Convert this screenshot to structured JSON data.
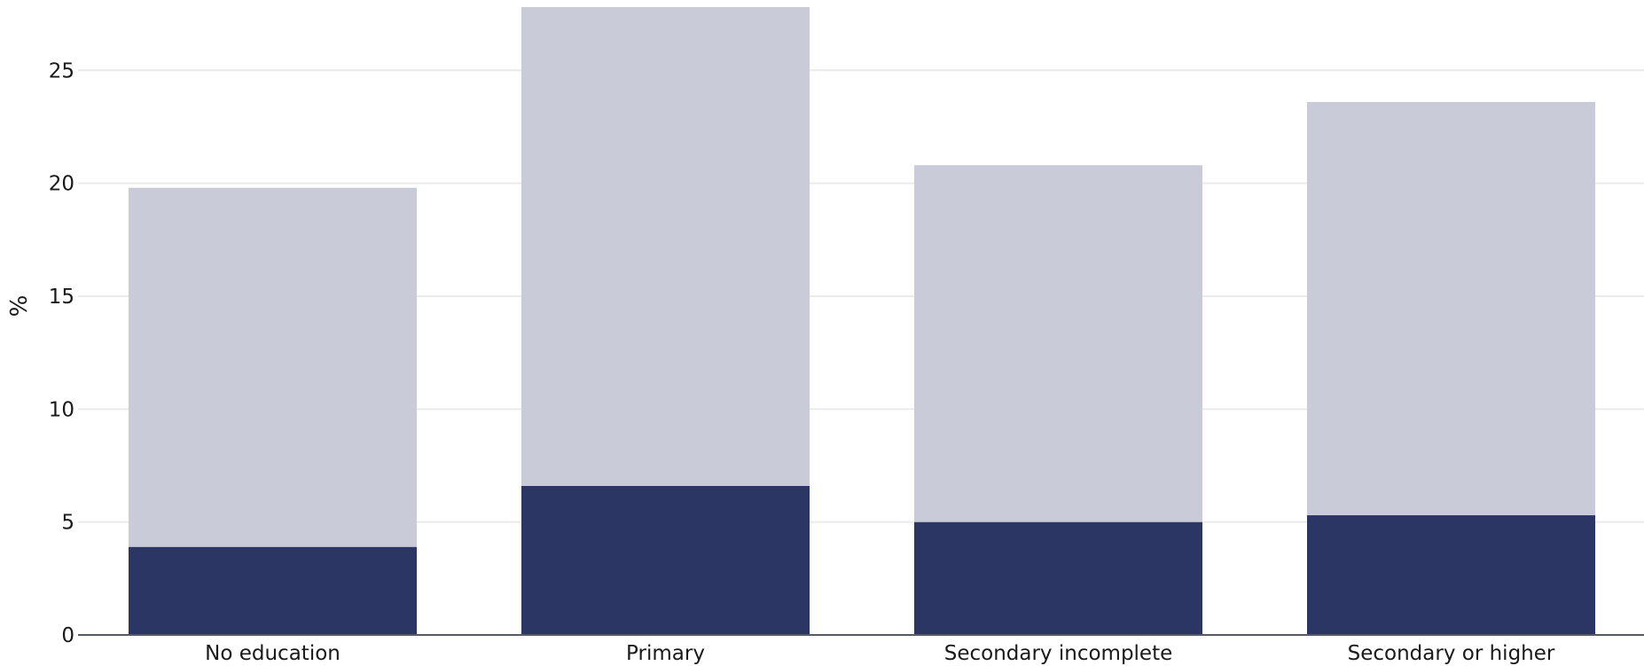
{
  "chart_data": {
    "type": "bar",
    "stacked": true,
    "categories": [
      "No education",
      "Primary",
      "Secondary incomplete",
      "Secondary or higher"
    ],
    "series": [
      {
        "values": [
          3.9,
          6.6,
          5.0,
          5.3
        ],
        "color": "#2b3665"
      },
      {
        "values": [
          15.9,
          21.2,
          15.8,
          18.3
        ],
        "color": "#c9cbd8"
      }
    ],
    "totals": [
      19.8,
      27.8,
      20.8,
      23.6
    ],
    "ylabel": "%",
    "ylim": [
      0,
      27.8
    ],
    "yticks": [
      0,
      5,
      10,
      15,
      20,
      25
    ],
    "grid": true,
    "legend": "none"
  }
}
